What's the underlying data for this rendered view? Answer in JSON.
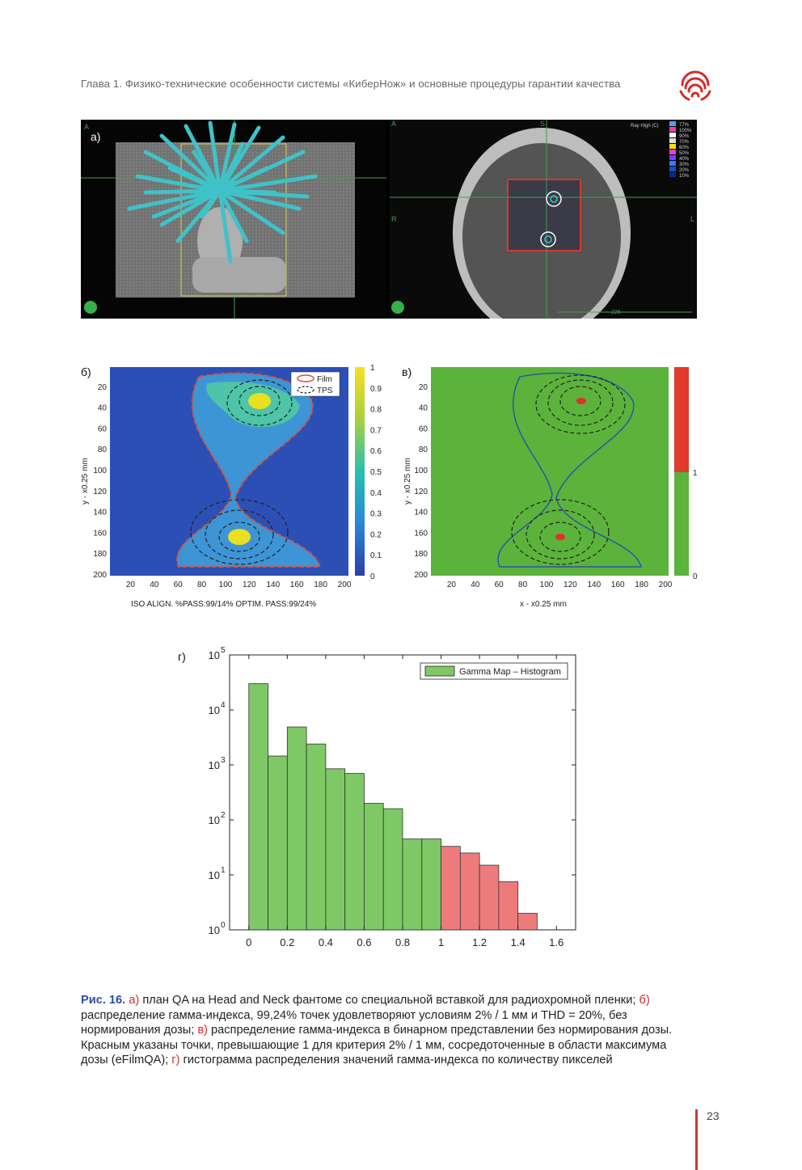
{
  "header": {
    "text": "Глава 1. Физико-технические особенности системы «КиберНож» и основные процедуры гарантии качества"
  },
  "panel_a": {
    "label": "а)",
    "left_view_marker": "A",
    "right_view_marker": "A",
    "right_top_marker": "S",
    "right_left_marker": "R",
    "right_right_marker": "L",
    "ray_label": "Ray High (C)",
    "legend_levels": [
      "77%",
      "100%",
      "90%",
      "70%",
      "60%",
      "50%",
      "40%",
      "30%",
      "20%",
      "10%"
    ],
    "legend_colors": [
      "#4aa3ff",
      "#ff3aa0",
      "#ffffff",
      "#dddddd",
      "#ffe000",
      "#e040e0",
      "#7a3aff",
      "#3a7aff",
      "#1a50c0",
      "#0a2a80"
    ],
    "ruler_value": "226"
  },
  "panel_b": {
    "label": "б)",
    "ylabel": "y - x0.25 mm",
    "footer": "ISO ALIGN. %PASS:99/14% OPTIM. PASS:99/24%",
    "legend_film": "Film",
    "legend_tps": "TPS",
    "x_ticks": [
      "20",
      "40",
      "60",
      "80",
      "100",
      "120",
      "140",
      "160",
      "180",
      "200"
    ],
    "y_ticks": [
      "20",
      "40",
      "60",
      "80",
      "100",
      "120",
      "140",
      "160",
      "180",
      "200"
    ],
    "colorbar_ticks": [
      "1",
      "0.9",
      "0.8",
      "0.7",
      "0.6",
      "0.5",
      "0.4",
      "0.3",
      "0.2",
      "0.1",
      "0"
    ]
  },
  "panel_c": {
    "label": "в)",
    "ylabel": "y - x0.25 mm",
    "xlabel": "x - x0.25 mm",
    "x_ticks": [
      "20",
      "40",
      "60",
      "80",
      "100",
      "120",
      "140",
      "160",
      "180",
      "200"
    ],
    "y_ticks": [
      "20",
      "40",
      "60",
      "80",
      "100",
      "120",
      "140",
      "160",
      "180",
      "200"
    ],
    "colorbar_ticks": [
      "1",
      "0"
    ]
  },
  "panel_d_label": "г)",
  "chart_data": {
    "type": "bar",
    "legend": "Gamma Map – Histogram",
    "x_ticks": [
      "0",
      "0.2",
      "0.4",
      "0.6",
      "0.8",
      "1",
      "1.2",
      "1.4",
      "1.6"
    ],
    "y_ticks": [
      "10^0",
      "10^1",
      "10^2",
      "10^3",
      "10^4",
      "10^5"
    ],
    "y_scale": "log",
    "ylim": [
      1,
      100000
    ],
    "xlim": [
      -0.1,
      1.7
    ],
    "bin_width": 0.1,
    "bins_x": [
      0,
      0.1,
      0.2,
      0.3,
      0.4,
      0.5,
      0.6,
      0.7,
      0.8,
      0.9,
      1.0,
      1.1,
      1.2,
      1.3,
      1.4,
      1.5
    ],
    "values": [
      30000,
      1450,
      4900,
      2400,
      850,
      700,
      200,
      160,
      45,
      45,
      33,
      25,
      15,
      7.5,
      2
    ],
    "colors": {
      "pass": "#7ec865",
      "fail": "#ee7b7b"
    },
    "threshold": 1.0
  },
  "caption": {
    "lead": "Рис. 16.",
    "a_label": "а)",
    "a_text": " план QA на Head and Neck фантоме со специальной вставкой для радиохромной пленки; ",
    "b_label": "б)",
    "b_text": " распределение гамма-индекса, 99,24% точек удовлетворяют условиям 2% / 1 мм и THD = 20%, без нормирования дозы; ",
    "c_label": "в)",
    "c_text": " распределение гамма-индекса в бинарном представлении без нормирования дозы. Красным указаны точки, превышающие 1 для критерия 2% / 1 мм, сосредоточенные в области максимума дозы (eFilmQA); ",
    "d_label": "г)",
    "d_text": " гистограмма распределения значений гамма-индекса по количеству пикселей"
  },
  "page_number": "23"
}
